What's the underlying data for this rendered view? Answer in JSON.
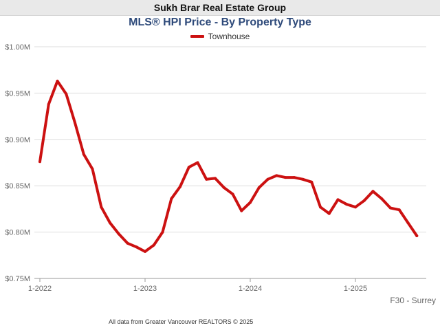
{
  "banner": "Sukh Brar Real Estate Group",
  "corner_label": "F30 - Surrey",
  "footer": "All data from Greater Vancouver REALTORS © 2025",
  "colors": {
    "series": "#cc1111",
    "title": "#2e4a7a",
    "grid": "#dddddd",
    "axis": "#666666"
  },
  "chart_data": {
    "type": "line",
    "title": "MLS® HPI Price - By Property Type",
    "xlabel": "",
    "ylabel": "",
    "ylim": [
      0.75,
      1.0
    ],
    "yticks": [
      {
        "value": 1.0,
        "label": "$1.00M"
      },
      {
        "value": 0.95,
        "label": "$0.95M"
      },
      {
        "value": 0.9,
        "label": "$0.90M"
      },
      {
        "value": 0.85,
        "label": "$0.85M"
      },
      {
        "value": 0.8,
        "label": "$0.80M"
      },
      {
        "value": 0.75,
        "label": "$0.75M"
      }
    ],
    "xticks": [
      "1-2022",
      "1-2023",
      "1-2024",
      "1-2025"
    ],
    "x": [
      "2022-01",
      "2022-02",
      "2022-03",
      "2022-04",
      "2022-05",
      "2022-06",
      "2022-07",
      "2022-08",
      "2022-09",
      "2022-10",
      "2022-11",
      "2022-12",
      "2023-01",
      "2023-02",
      "2023-03",
      "2023-04",
      "2023-05",
      "2023-06",
      "2023-07",
      "2023-08",
      "2023-09",
      "2023-10",
      "2023-11",
      "2023-12",
      "2024-01",
      "2024-02",
      "2024-03",
      "2024-04",
      "2024-05",
      "2024-06",
      "2024-07",
      "2024-08",
      "2024-09",
      "2024-10",
      "2024-11",
      "2024-12",
      "2025-01",
      "2025-02",
      "2025-03",
      "2025-04",
      "2025-05",
      "2025-06",
      "2025-07",
      "2025-08"
    ],
    "grid": true,
    "legend": "top-center",
    "series": [
      {
        "name": "Townhouse",
        "values": [
          0.876,
          0.938,
          0.963,
          0.949,
          0.918,
          0.884,
          0.868,
          0.827,
          0.81,
          0.798,
          0.788,
          0.784,
          0.779,
          0.786,
          0.8,
          0.836,
          0.849,
          0.87,
          0.875,
          0.857,
          0.858,
          0.848,
          0.841,
          0.823,
          0.832,
          0.848,
          0.857,
          0.861,
          0.859,
          0.859,
          0.857,
          0.854,
          0.827,
          0.82,
          0.835,
          0.83,
          0.827,
          0.834,
          0.844,
          0.836,
          0.826,
          0.824,
          0.81,
          0.796
        ]
      }
    ]
  }
}
